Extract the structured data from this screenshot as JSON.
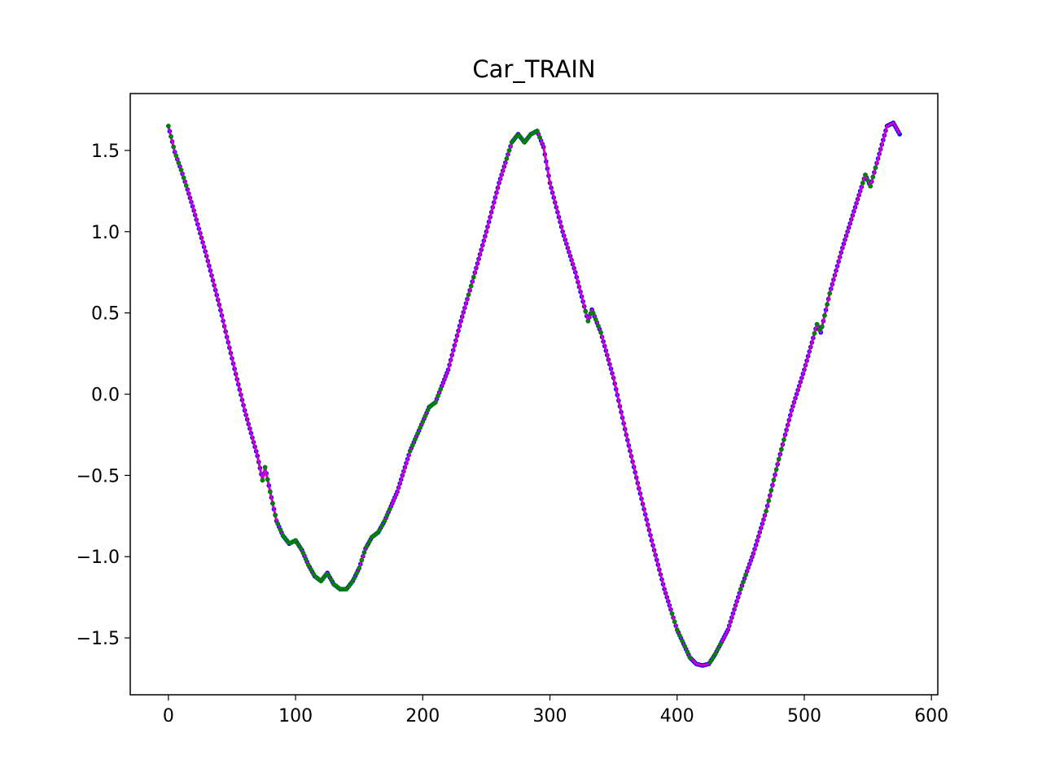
{
  "chart_data": {
    "type": "line",
    "title": "Car_TRAIN",
    "xlabel": "",
    "ylabel": "",
    "xlim": [
      -30,
      605
    ],
    "ylim": [
      -1.85,
      1.85
    ],
    "xticks": [
      0,
      100,
      200,
      300,
      400,
      500,
      600
    ],
    "xtick_labels": [
      "0",
      "100",
      "200",
      "300",
      "400",
      "500",
      "600"
    ],
    "yticks": [
      1.5,
      1.0,
      0.5,
      0.0,
      -0.5,
      -1.0,
      -1.5
    ],
    "ytick_labels": [
      "1.5",
      "1.0",
      "0.5",
      "0.0",
      "−0.5",
      "−1.0",
      "−1.5"
    ],
    "grid": false,
    "legend": "none",
    "colors": {
      "line": "#cc00cc",
      "points_blue": "#0000ff",
      "points_green": "#008000"
    },
    "series": [
      {
        "values": {
          "x": [
            0,
            5,
            10,
            15,
            20,
            30,
            40,
            50,
            60,
            70,
            74,
            76,
            80,
            85,
            90,
            95,
            100,
            105,
            110,
            115,
            120,
            125,
            130,
            135,
            140,
            145,
            150,
            155,
            160,
            165,
            170,
            180,
            190,
            200,
            205,
            210,
            220,
            230,
            240,
            250,
            260,
            270,
            275,
            280,
            285,
            290,
            295,
            300,
            310,
            320,
            330,
            333,
            340,
            350,
            360,
            370,
            380,
            390,
            400,
            410,
            415,
            420,
            425,
            430,
            440,
            450,
            460,
            470,
            480,
            490,
            500,
            510,
            513,
            515,
            520,
            530,
            540,
            548,
            552,
            558,
            565,
            570,
            575
          ],
          "y": [
            1.65,
            1.49,
            1.38,
            1.26,
            1.13,
            0.85,
            0.55,
            0.22,
            -0.1,
            -0.38,
            -0.53,
            -0.45,
            -0.6,
            -0.78,
            -0.87,
            -0.92,
            -0.9,
            -0.96,
            -1.05,
            -1.12,
            -1.15,
            -1.1,
            -1.17,
            -1.2,
            -1.2,
            -1.15,
            -1.07,
            -0.95,
            -0.88,
            -0.85,
            -0.78,
            -0.6,
            -0.35,
            -0.17,
            -0.08,
            -0.05,
            0.15,
            0.45,
            0.72,
            1.0,
            1.3,
            1.55,
            1.6,
            1.55,
            1.6,
            1.62,
            1.52,
            1.3,
            1.0,
            0.75,
            0.45,
            0.52,
            0.38,
            0.1,
            -0.25,
            -0.58,
            -0.9,
            -1.2,
            -1.45,
            -1.62,
            -1.66,
            -1.67,
            -1.66,
            -1.6,
            -1.45,
            -1.2,
            -0.98,
            -0.72,
            -0.4,
            -0.1,
            0.15,
            0.43,
            0.38,
            0.45,
            0.62,
            0.9,
            1.15,
            1.35,
            1.28,
            1.45,
            1.65,
            1.67,
            1.6
          ]
        }
      }
    ]
  }
}
